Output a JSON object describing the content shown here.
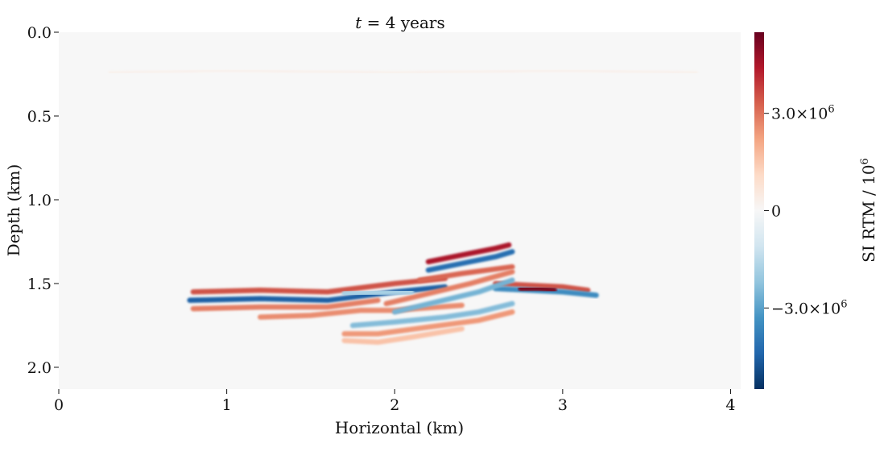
{
  "chart_data": {
    "type": "heatmap",
    "title": "t = 4 years",
    "title_var": "t",
    "title_rest": " = 4 years",
    "xlabel": "Horizontal (km)",
    "ylabel": "Depth (km)",
    "xlim": [
      0,
      4.06
    ],
    "ylim": [
      2.13,
      0.0
    ],
    "xticks": [
      0,
      1,
      2,
      3,
      4
    ],
    "xtick_labels": [
      "0",
      "1",
      "2",
      "3",
      "4"
    ],
    "yticks": [
      0.0,
      0.5,
      1.0,
      1.5,
      2.0
    ],
    "ytick_labels": [
      "0.0",
      "0.5",
      "1.0",
      "1.5",
      "2.0"
    ],
    "colorbar": {
      "label": "SI RTM / 10",
      "label_exp": "6",
      "range": [
        -5.5,
        5.5
      ],
      "ticks": [
        3.0,
        0,
        -3.0
      ],
      "tick_labels": [
        "3.0×10",
        "0",
        "−3.0×10"
      ],
      "tick_exp": [
        "6",
        "",
        "6"
      ],
      "colormap": "RdBu_r",
      "colors": [
        "#053061",
        "#2166ac",
        "#4393c3",
        "#92c5de",
        "#d1e5f0",
        "#f7f7f7",
        "#fddbc7",
        "#f4a582",
        "#d6604d",
        "#b2182b",
        "#67001f"
      ]
    },
    "reflectors": [
      {
        "x": [
          0.8,
          1.2,
          1.6,
          2.0,
          2.3
        ],
        "depth": [
          1.55,
          1.54,
          1.55,
          1.5,
          1.47
        ],
        "amp": 3.5
      },
      {
        "x": [
          0.78,
          1.2,
          1.6,
          2.0,
          2.3
        ],
        "depth": [
          1.6,
          1.59,
          1.6,
          1.55,
          1.52
        ],
        "amp": -4.5
      },
      {
        "x": [
          0.8,
          1.2,
          1.6,
          1.9
        ],
        "depth": [
          1.65,
          1.64,
          1.64,
          1.6
        ],
        "amp": 2.8
      },
      {
        "x": [
          2.2,
          2.4,
          2.6,
          2.68
        ],
        "depth": [
          1.37,
          1.33,
          1.29,
          1.27
        ],
        "amp": 4.5
      },
      {
        "x": [
          2.2,
          2.4,
          2.6,
          2.7
        ],
        "depth": [
          1.42,
          1.38,
          1.34,
          1.31
        ],
        "amp": -4.2
      },
      {
        "x": [
          2.15,
          2.4,
          2.7
        ],
        "depth": [
          1.48,
          1.44,
          1.4
        ],
        "amp": 3.2
      },
      {
        "x": [
          2.6,
          2.8,
          3.0,
          3.15
        ],
        "depth": [
          1.5,
          1.51,
          1.52,
          1.54
        ],
        "amp": 3.5
      },
      {
        "x": [
          2.6,
          2.8,
          3.0,
          3.2
        ],
        "depth": [
          1.53,
          1.54,
          1.55,
          1.57
        ],
        "amp": -3.5
      },
      {
        "x": [
          2.75,
          2.85,
          2.95
        ],
        "depth": [
          1.53,
          1.53,
          1.54
        ],
        "amp": 5.2
      },
      {
        "x": [
          1.2,
          1.5,
          1.8,
          2.0,
          2.4
        ],
        "depth": [
          1.7,
          1.69,
          1.66,
          1.66,
          1.63
        ],
        "amp": 2.6
      },
      {
        "x": [
          1.75,
          2.0,
          2.3,
          2.5,
          2.7
        ],
        "depth": [
          1.75,
          1.73,
          1.7,
          1.67,
          1.62
        ],
        "amp": -2.4
      },
      {
        "x": [
          1.7,
          1.9,
          2.2,
          2.5,
          2.7
        ],
        "depth": [
          1.8,
          1.8,
          1.76,
          1.72,
          1.67
        ],
        "amp": 2.4
      },
      {
        "x": [
          1.7,
          1.9,
          2.1,
          2.4
        ],
        "depth": [
          1.84,
          1.85,
          1.82,
          1.77
        ],
        "amp": 1.6
      },
      {
        "x": [
          1.95,
          2.2,
          2.45,
          2.7
        ],
        "depth": [
          1.62,
          1.56,
          1.5,
          1.43
        ],
        "amp": 2.8
      },
      {
        "x": [
          2.0,
          2.25,
          2.5,
          2.7
        ],
        "depth": [
          1.67,
          1.61,
          1.55,
          1.48
        ],
        "amp": -2.6
      },
      {
        "x": [
          1.4,
          1.6
        ],
        "depth": [
          1.63,
          1.63
        ],
        "amp": -3.2
      },
      {
        "x": [
          1.45,
          1.62
        ],
        "depth": [
          1.67,
          1.67
        ],
        "amp": 4.0
      },
      {
        "x": [
          1.7,
          2.0
        ],
        "depth": [
          1.5,
          1.5
        ],
        "amp": -2.0
      },
      {
        "x": [
          1.7,
          2.1
        ],
        "depth": [
          1.56,
          1.55
        ],
        "amp": -1.8
      },
      {
        "x": [
          0.3,
          1.0,
          2.0,
          3.0,
          3.8
        ],
        "depth": [
          0.24,
          0.23,
          0.24,
          0.23,
          0.24
        ],
        "amp": 0.4
      }
    ]
  }
}
